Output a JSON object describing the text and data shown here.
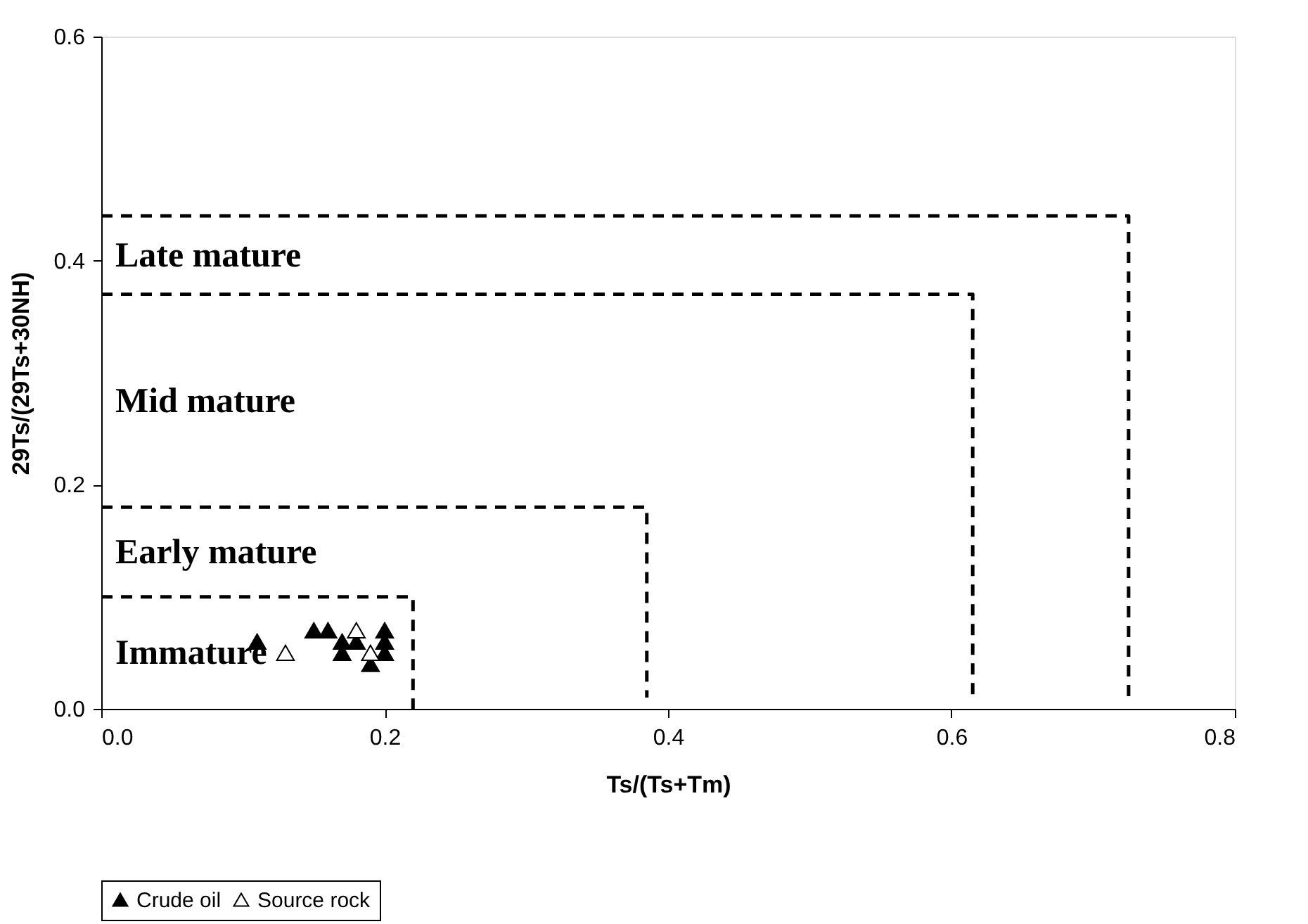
{
  "chart_data": {
    "type": "scatter",
    "xlabel": "Ts/(Ts+Tm)",
    "ylabel": "29Ts/(29Ts+30NH)",
    "xlim": [
      0,
      0.8
    ],
    "xticks": [
      {
        "value": 0,
        "label": "0.0"
      },
      0.2,
      0.4,
      0.6,
      0.8
    ],
    "ylim": [
      0,
      0.6
    ],
    "yticks": [
      {
        "value": 0,
        "label": "0.0"
      },
      0.2,
      0.4,
      0.6
    ],
    "legend": "bottom",
    "grid": false,
    "marker": "triangle",
    "series": [
      {
        "name": "Crude oil",
        "color": "#000000",
        "x": [
          0.11,
          0.15,
          0.16,
          0.17,
          0.17,
          0.18,
          0.19,
          0.2,
          0.2,
          0.2
        ],
        "values": [
          0.06,
          0.07,
          0.07,
          0.06,
          0.05,
          0.06,
          0.04,
          0.07,
          0.06,
          0.05
        ]
      },
      {
        "name": "Source rock",
        "color": "#ffffff",
        "x": [
          0.13,
          0.18,
          0.19
        ],
        "values": [
          0.05,
          0.07,
          0.05
        ]
      },
      {
        "type": "line",
        "line_style": "dashed",
        "marker": "none",
        "color": "#000000",
        "x": [
          0,
          0.22,
          0.22
        ],
        "values": [
          0.1,
          0.1,
          0
        ]
      },
      {
        "type": "line",
        "line_style": "dashed",
        "marker": "none",
        "color": "#000000",
        "x": [
          0,
          0.385,
          0.385
        ],
        "values": [
          0.18,
          0.18,
          0.01
        ]
      },
      {
        "type": "line",
        "line_style": "dashed",
        "marker": "none",
        "color": "#000000",
        "x": [
          0,
          0.615,
          0.615
        ],
        "values": [
          0.37,
          0.37,
          0.01
        ]
      },
      {
        "type": "line",
        "line_style": "dashed",
        "marker": "none",
        "color": "#000000",
        "x": [
          0,
          0.725,
          0.725
        ],
        "values": [
          0.44,
          0.44,
          0.01
        ]
      }
    ],
    "annotations": [
      "Late mature",
      "Mid mature",
      "Early mature",
      "Immature"
    ]
  }
}
